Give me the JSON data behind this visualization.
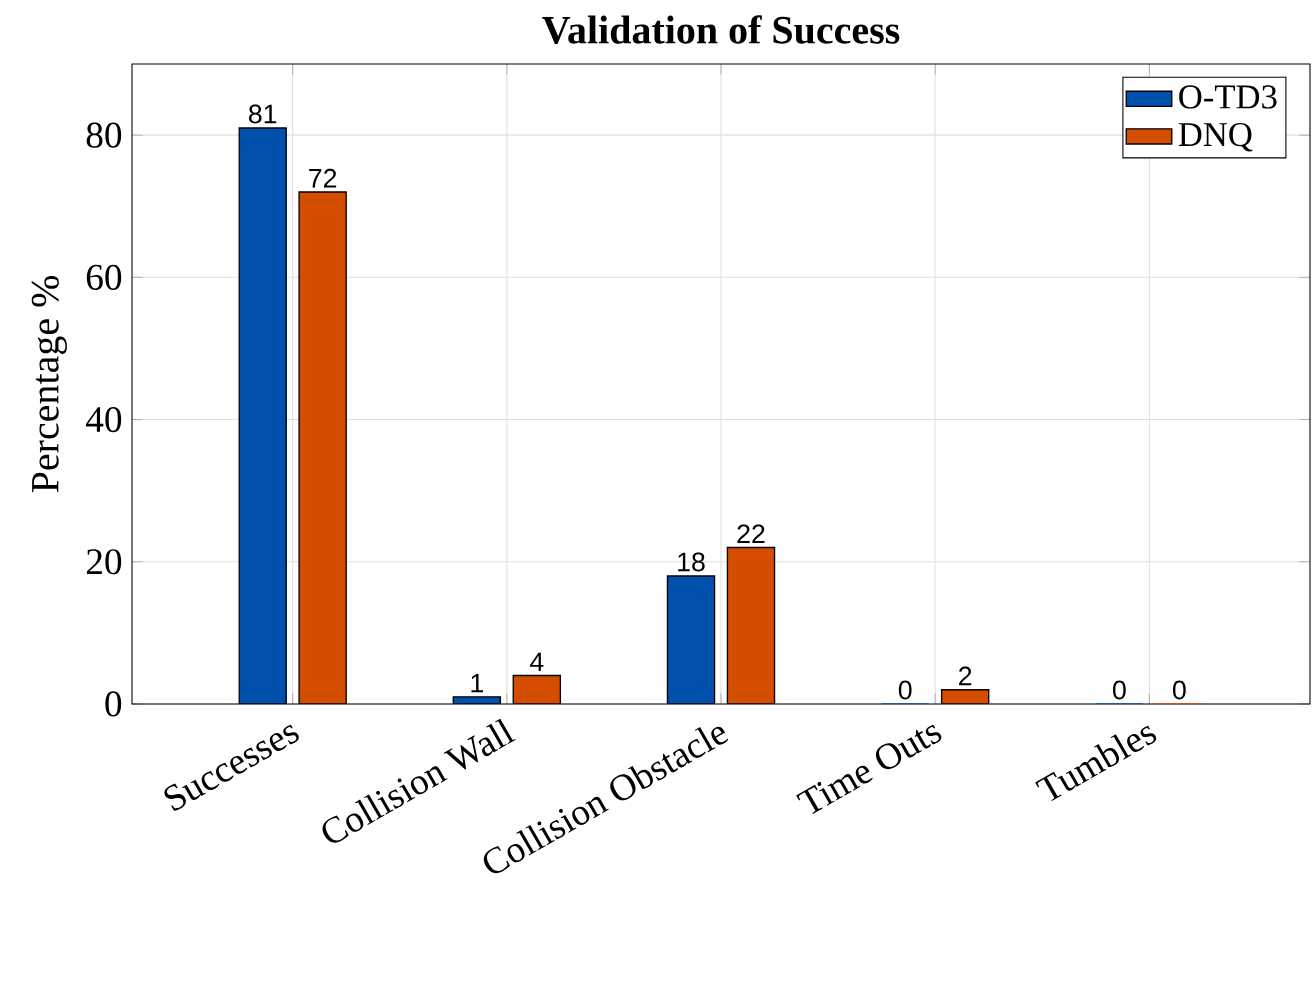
{
  "chart_data": {
    "type": "bar",
    "title": "Validation of Success",
    "ylabel": "Percentage %",
    "categories": [
      "Successes",
      "Collision Wall",
      "Collision Obstacle",
      "Time Outs",
      "Tumbles"
    ],
    "series": [
      {
        "name": "O-TD3",
        "color": "#0050ad",
        "values": [
          81,
          1,
          18,
          0,
          0
        ]
      },
      {
        "name": "DNQ",
        "color": "#d54e00",
        "values": [
          72,
          4,
          22,
          2,
          0
        ]
      }
    ],
    "ylim": [
      0,
      90
    ],
    "yticks": [
      0,
      20,
      40,
      60,
      80
    ],
    "grid": true,
    "legend": "top right",
    "data_labels": true
  }
}
